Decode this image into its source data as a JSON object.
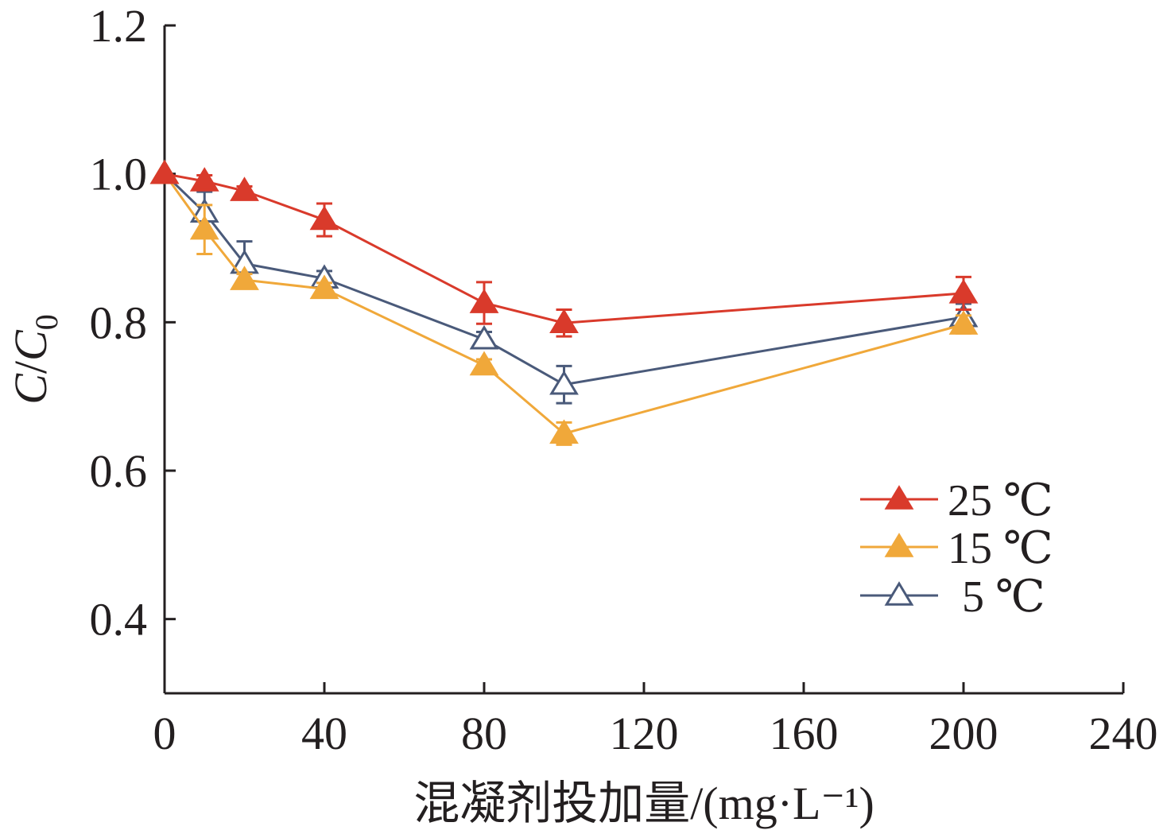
{
  "chart_data": {
    "type": "line",
    "xlabel": "混凝剂投加量/(mg·L⁻¹)",
    "ylabel_main": "C",
    "ylabel_slash": "/",
    "ylabel_sub": "C",
    "ylabel_subscript": "0",
    "xlim": [
      0,
      240
    ],
    "ylim": [
      0.3,
      1.2
    ],
    "xticks": [
      0,
      40,
      80,
      120,
      160,
      200,
      240
    ],
    "xtick_labels": [
      "0",
      "40",
      "80",
      "120",
      "160",
      "200",
      "240"
    ],
    "yticks": [
      0.4,
      0.6,
      0.8,
      1.0,
      1.2
    ],
    "ytick_labels": [
      "0.4",
      "0.6",
      "0.8",
      "1.0",
      "1.2"
    ],
    "legend_position": "bottom-right",
    "x": [
      0,
      10,
      20,
      40,
      80,
      100,
      200
    ],
    "series": [
      {
        "name": "25 ℃",
        "color": "#d93a2b",
        "marker": "filled-triangle",
        "values": [
          1.0,
          0.99,
          0.977,
          0.938,
          0.826,
          0.799,
          0.839
        ],
        "errors": [
          0.0,
          0.008,
          0.006,
          0.022,
          0.028,
          0.018,
          0.022
        ]
      },
      {
        "name": "15 ℃",
        "color": "#f0a83a",
        "marker": "filled-triangle",
        "values": [
          1.0,
          0.925,
          0.857,
          0.845,
          0.742,
          0.65,
          0.797
        ],
        "errors": [
          0.0,
          0.033,
          0.008,
          0.008,
          0.008,
          0.015,
          0.012
        ]
      },
      {
        "name": "5 ℃",
        "color": "#4a5a7a",
        "marker": "open-triangle",
        "values": [
          1.0,
          0.948,
          0.879,
          0.859,
          0.777,
          0.716,
          0.807
        ],
        "errors": [
          0.0,
          0.028,
          0.03,
          0.01,
          0.01,
          0.025,
          0.018
        ]
      }
    ]
  }
}
